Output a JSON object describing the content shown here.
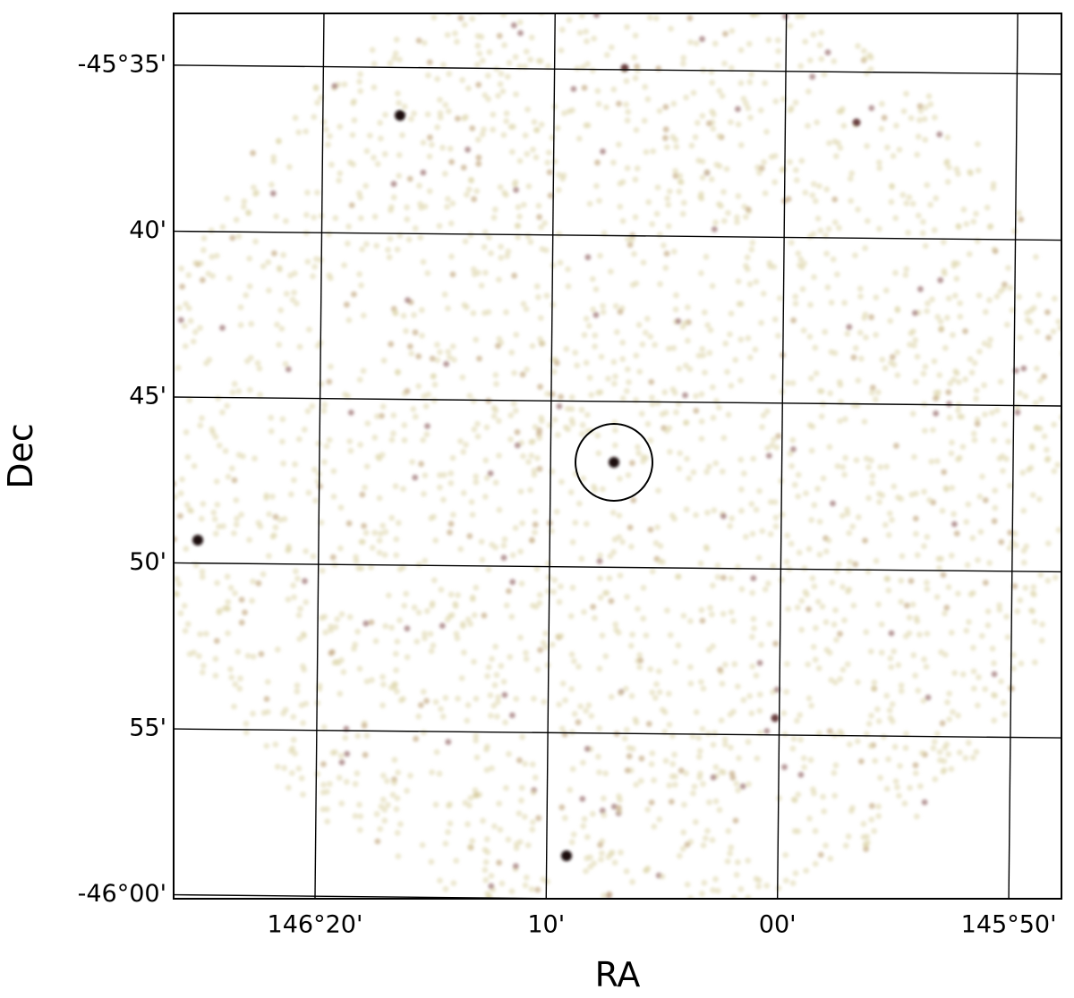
{
  "chart_data": {
    "type": "sky-image",
    "xlabel": "RA",
    "ylabel": "Dec",
    "xlim": [
      146.4352,
      145.7953
    ],
    "ylim": [
      -45.5573,
      -46.002
    ],
    "xticks": [
      {
        "value": 146.3333,
        "label": "146°20'"
      },
      {
        "value": 146.1667,
        "label": "10'"
      },
      {
        "value": 146.0,
        "label": "00'"
      },
      {
        "value": 145.8333,
        "label": "145°50'"
      }
    ],
    "yticks": [
      {
        "value": -45.5833,
        "label": "-45°35'"
      },
      {
        "value": -45.6667,
        "label": "40'"
      },
      {
        "value": -45.75,
        "label": "45'"
      },
      {
        "value": -45.8333,
        "label": "50'"
      },
      {
        "value": -45.9167,
        "label": "55'"
      },
      {
        "value": -46.0,
        "label": "-46°00'"
      }
    ],
    "grid": true
  }
}
